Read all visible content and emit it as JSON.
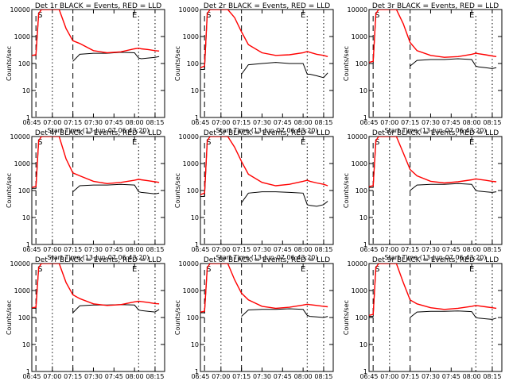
{
  "figure": {
    "ylabel": "Counts/sec",
    "xlabel": "Start Time (13-Jun-07 06:43:20)",
    "series_legend_text": "BLACK = Events, RED = LLD",
    "colors": {
      "events": "#000000",
      "lld": "#ff0000",
      "axes": "#000000"
    }
  },
  "chart_data": [
    {
      "type": "line",
      "title": "Det 1r BLACK = Events, RED = LLD",
      "x": [
        "06:45",
        "06:48",
        "06:50",
        "06:52",
        "06:55",
        "06:58",
        "07:00",
        "07:05",
        "07:10",
        "07:15",
        "07:20",
        "07:30",
        "07:40",
        "07:50",
        "08:00",
        "08:03",
        "08:05",
        "08:10",
        "08:15",
        "08:18"
      ],
      "series": [
        {
          "name": "Events",
          "values": [
            200,
            200,
            7000,
            10000,
            10000,
            10000,
            10000,
            10000,
            null,
            120,
            220,
            240,
            240,
            260,
            250,
            160,
            150,
            160,
            170,
            180
          ]
        },
        {
          "name": "LLD",
          "values": [
            200,
            210,
            7000,
            10000,
            10000,
            10000,
            10000,
            10000,
            2000,
            700,
            550,
            300,
            250,
            270,
            350,
            370,
            350,
            330,
            300,
            290
          ]
        }
      ],
      "xlabel": "Start Time (13-Jun-07 06:43:20)",
      "ylabel": "Counts/sec",
      "ylim": [
        1,
        10000
      ],
      "log_y": true,
      "xticks": [
        "06:45",
        "07:00",
        "07:15",
        "07:30",
        "07:45",
        "08:00",
        "08:15"
      ],
      "yticks": [
        "1",
        "10",
        "100",
        "1000",
        "10000"
      ],
      "markers": [
        "S",
        "E"
      ]
    },
    {
      "type": "line",
      "title": "Det 2r BLACK = Events, RED = LLD",
      "x": [
        "06:45",
        "06:48",
        "06:50",
        "06:52",
        "06:55",
        "06:58",
        "07:00",
        "07:05",
        "07:10",
        "07:15",
        "07:20",
        "07:30",
        "07:40",
        "07:50",
        "08:00",
        "08:03",
        "08:05",
        "08:10",
        "08:15",
        "08:18"
      ],
      "series": [
        {
          "name": "Events",
          "values": [
            60,
            60,
            7000,
            10000,
            10000,
            10000,
            10000,
            10000,
            null,
            40,
            90,
            100,
            110,
            100,
            100,
            40,
            40,
            35,
            30,
            45
          ]
        },
        {
          "name": "LLD",
          "values": [
            70,
            80,
            7000,
            10000,
            10000,
            10000,
            10000,
            10000,
            5000,
            1500,
            500,
            250,
            200,
            210,
            250,
            280,
            260,
            220,
            200,
            180
          ]
        }
      ],
      "xlabel": "Start Time (13-Jun-07 06:43:20)",
      "ylabel": "Counts/sec",
      "ylim": [
        1,
        10000
      ],
      "log_y": true,
      "xticks": [
        "06:45",
        "07:00",
        "07:15",
        "07:30",
        "07:45",
        "08:00",
        "08:15"
      ],
      "yticks": [
        "1",
        "10",
        "100",
        "1000",
        "10000"
      ],
      "markers": [
        "S",
        "E"
      ]
    },
    {
      "type": "line",
      "title": "Det 3r BLACK = Events, RED = LLD",
      "x": [
        "06:45",
        "06:48",
        "06:50",
        "06:52",
        "06:55",
        "06:58",
        "07:00",
        "07:05",
        "07:10",
        "07:15",
        "07:20",
        "07:30",
        "07:40",
        "07:50",
        "08:00",
        "08:03",
        "08:05",
        "08:10",
        "08:15",
        "08:18"
      ],
      "series": [
        {
          "name": "Events",
          "values": [
            100,
            100,
            7000,
            10000,
            10000,
            10000,
            10000,
            10000,
            null,
            80,
            130,
            140,
            140,
            150,
            140,
            80,
            75,
            70,
            65,
            70
          ]
        },
        {
          "name": "LLD",
          "values": [
            110,
            120,
            7000,
            10000,
            10000,
            10000,
            10000,
            10000,
            3000,
            600,
            300,
            200,
            170,
            180,
            220,
            240,
            230,
            210,
            190,
            180
          ]
        }
      ],
      "xlabel": "Start Time (13-Jun-07 06:43:20)",
      "ylabel": "Counts/sec",
      "ylim": [
        1,
        10000
      ],
      "log_y": true,
      "xticks": [
        "06:45",
        "07:00",
        "07:15",
        "07:30",
        "07:45",
        "08:00",
        "08:15"
      ],
      "yticks": [
        "1",
        "10",
        "100",
        "1000",
        "10000"
      ],
      "markers": [
        "S",
        "E"
      ]
    },
    {
      "type": "line",
      "title": "Det 4r BLACK = Events, RED = LLD",
      "x": [
        "06:45",
        "06:48",
        "06:50",
        "06:52",
        "06:55",
        "06:58",
        "07:00",
        "07:05",
        "07:10",
        "07:15",
        "07:20",
        "07:30",
        "07:40",
        "07:50",
        "08:00",
        "08:03",
        "08:05",
        "08:10",
        "08:15",
        "08:18"
      ],
      "series": [
        {
          "name": "Events",
          "values": [
            120,
            120,
            7000,
            10000,
            10000,
            10000,
            10000,
            10000,
            null,
            90,
            150,
            160,
            160,
            170,
            160,
            90,
            85,
            80,
            75,
            80
          ]
        },
        {
          "name": "LLD",
          "values": [
            130,
            140,
            7000,
            10000,
            10000,
            10000,
            10000,
            10000,
            1500,
            450,
            350,
            220,
            180,
            200,
            240,
            260,
            250,
            230,
            210,
            200
          ]
        }
      ],
      "xlabel": "Start Time (13-Jun-07 06:43:20)",
      "ylabel": "Counts/sec",
      "ylim": [
        1,
        10000
      ],
      "log_y": true,
      "xticks": [
        "06:45",
        "07:00",
        "07:15",
        "07:30",
        "07:45",
        "08:00",
        "08:15"
      ],
      "yticks": [
        "1",
        "10",
        "100",
        "1000",
        "10000"
      ],
      "markers": [
        "S",
        "E"
      ]
    },
    {
      "type": "line",
      "title": "Det 5r BLACK = Events, RED = LLD",
      "x": [
        "06:45",
        "06:48",
        "06:50",
        "06:52",
        "06:55",
        "06:58",
        "07:00",
        "07:05",
        "07:10",
        "07:15",
        "07:20",
        "07:30",
        "07:40",
        "07:50",
        "08:00",
        "08:03",
        "08:05",
        "08:10",
        "08:15",
        "08:18"
      ],
      "series": [
        {
          "name": "Events",
          "values": [
            60,
            60,
            7000,
            10000,
            10000,
            10000,
            10000,
            10000,
            null,
            35,
            80,
            90,
            90,
            85,
            80,
            30,
            28,
            26,
            30,
            40
          ]
        },
        {
          "name": "LLD",
          "values": [
            70,
            80,
            7000,
            10000,
            10000,
            10000,
            10000,
            10000,
            4000,
            1200,
            400,
            200,
            150,
            170,
            220,
            240,
            220,
            190,
            170,
            150
          ]
        }
      ],
      "xlabel": "Start Time (13-Jun-07 06:43:20)",
      "ylabel": "Counts/sec",
      "ylim": [
        1,
        10000
      ],
      "log_y": true,
      "xticks": [
        "06:45",
        "07:00",
        "07:15",
        "07:30",
        "07:45",
        "08:00",
        "08:15"
      ],
      "yticks": [
        "1",
        "10",
        "100",
        "1000",
        "10000"
      ],
      "markers": [
        "S",
        "E"
      ]
    },
    {
      "type": "line",
      "title": "Det 6r BLACK = Events, RED = LLD",
      "x": [
        "06:45",
        "06:48",
        "06:50",
        "06:52",
        "06:55",
        "06:58",
        "07:00",
        "07:05",
        "07:10",
        "07:15",
        "07:20",
        "07:30",
        "07:40",
        "07:50",
        "08:00",
        "08:03",
        "08:05",
        "08:10",
        "08:15",
        "08:18"
      ],
      "series": [
        {
          "name": "Events",
          "values": [
            130,
            130,
            7000,
            10000,
            10000,
            10000,
            10000,
            10000,
            null,
            100,
            160,
            170,
            170,
            180,
            170,
            100,
            95,
            90,
            85,
            90
          ]
        },
        {
          "name": "LLD",
          "values": [
            140,
            150,
            7000,
            10000,
            10000,
            10000,
            10000,
            10000,
            2500,
            600,
            350,
            220,
            190,
            210,
            250,
            270,
            260,
            240,
            220,
            210
          ]
        }
      ],
      "xlabel": "Start Time (13-Jun-07 06:43:20)",
      "ylabel": "Counts/sec",
      "ylim": [
        1,
        10000
      ],
      "log_y": true,
      "xticks": [
        "06:45",
        "07:00",
        "07:15",
        "07:30",
        "07:45",
        "08:00",
        "08:15"
      ],
      "yticks": [
        "1",
        "10",
        "100",
        "1000",
        "10000"
      ],
      "markers": [
        "S",
        "E"
      ]
    },
    {
      "type": "line",
      "title": "Det 7r BLACK = Events, RED = LLD",
      "x": [
        "06:45",
        "06:48",
        "06:50",
        "06:52",
        "06:55",
        "06:58",
        "07:00",
        "07:05",
        "07:10",
        "07:15",
        "07:20",
        "07:30",
        "07:40",
        "07:50",
        "08:00",
        "08:03",
        "08:05",
        "08:10",
        "08:15",
        "08:18"
      ],
      "series": [
        {
          "name": "Events",
          "values": [
            220,
            220,
            7000,
            10000,
            10000,
            10000,
            10000,
            10000,
            null,
            150,
            270,
            290,
            290,
            300,
            290,
            190,
            180,
            170,
            160,
            200
          ]
        },
        {
          "name": "LLD",
          "values": [
            230,
            240,
            7000,
            10000,
            10000,
            10000,
            10000,
            10000,
            2000,
            700,
            500,
            320,
            280,
            300,
            380,
            400,
            390,
            360,
            330,
            320
          ]
        }
      ],
      "xlabel": "Start Time (13-Jun-07 06:43:20)",
      "ylabel": "Counts/sec",
      "ylim": [
        1,
        10000
      ],
      "log_y": true,
      "xticks": [
        "06:45",
        "07:00",
        "07:15",
        "07:30",
        "07:45",
        "08:00",
        "08:15"
      ],
      "yticks": [
        "1",
        "10",
        "100",
        "1000",
        "10000"
      ],
      "markers": [
        "S",
        "E"
      ]
    },
    {
      "type": "line",
      "title": "Det 8r BLACK = Events, RED = LLD",
      "x": [
        "06:45",
        "06:48",
        "06:50",
        "06:52",
        "06:55",
        "06:58",
        "07:00",
        "07:05",
        "07:10",
        "07:15",
        "07:20",
        "07:30",
        "07:40",
        "07:50",
        "08:00",
        "08:03",
        "08:05",
        "08:10",
        "08:15",
        "08:18"
      ],
      "series": [
        {
          "name": "Events",
          "values": [
            150,
            150,
            7000,
            10000,
            10000,
            10000,
            10000,
            10000,
            null,
            110,
            190,
            200,
            200,
            210,
            200,
            120,
            110,
            105,
            100,
            110
          ]
        },
        {
          "name": "LLD",
          "values": [
            160,
            170,
            7000,
            10000,
            10000,
            10000,
            10000,
            10000,
            2500,
            800,
            450,
            260,
            220,
            240,
            290,
            310,
            300,
            280,
            260,
            250
          ]
        }
      ],
      "xlabel": "Start Time (13-Jun-07 06:43:20)",
      "ylabel": "Counts/sec",
      "ylim": [
        1,
        10000
      ],
      "log_y": true,
      "xticks": [
        "06:45",
        "07:00",
        "07:15",
        "07:30",
        "07:45",
        "08:00",
        "08:15"
      ],
      "yticks": [
        "1",
        "10",
        "100",
        "1000",
        "10000"
      ],
      "markers": [
        "S",
        "E"
      ]
    },
    {
      "type": "line",
      "title": "Det 9r BLACK = Events, RED = LLD",
      "x": [
        "06:45",
        "06:48",
        "06:50",
        "06:52",
        "06:55",
        "06:58",
        "07:00",
        "07:05",
        "07:10",
        "07:15",
        "07:20",
        "07:30",
        "07:40",
        "07:50",
        "08:00",
        "08:03",
        "08:05",
        "08:10",
        "08:15",
        "08:18"
      ],
      "series": [
        {
          "name": "Events",
          "values": [
            110,
            110,
            7000,
            10000,
            10000,
            10000,
            10000,
            10000,
            null,
            100,
            160,
            170,
            170,
            175,
            165,
            100,
            95,
            90,
            85,
            95
          ]
        },
        {
          "name": "LLD",
          "values": [
            120,
            130,
            7000,
            10000,
            10000,
            10000,
            10000,
            10000,
            2000,
            450,
            320,
            230,
            200,
            220,
            260,
            280,
            270,
            250,
            230,
            220
          ]
        }
      ],
      "xlabel": "Start Time (13-Jun-07 06:43:20)",
      "ylabel": "Counts/sec",
      "ylim": [
        1,
        10000
      ],
      "log_y": true,
      "xticks": [
        "06:45",
        "07:00",
        "07:15",
        "07:30",
        "07:45",
        "08:00",
        "08:15"
      ],
      "yticks": [
        "1",
        "10",
        "100",
        "1000",
        "10000"
      ],
      "markers": [
        "S",
        "E"
      ]
    }
  ]
}
